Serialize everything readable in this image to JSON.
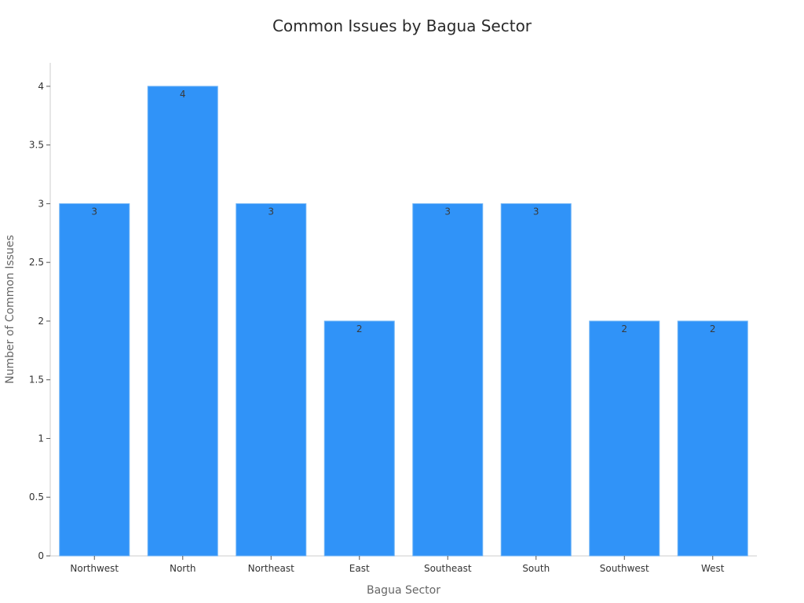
{
  "chart_data": {
    "type": "bar",
    "title": "Common Issues by Bagua Sector",
    "xlabel": "Bagua Sector",
    "ylabel": "Number of Common Issues",
    "categories": [
      "Northwest",
      "North",
      "Northeast",
      "East",
      "Southeast",
      "South",
      "Southwest",
      "West"
    ],
    "values": [
      3,
      4,
      3,
      2,
      3,
      3,
      2,
      2
    ],
    "ylim": [
      0,
      4.2
    ],
    "yticks": [
      "0",
      "0.5",
      "1",
      "1.5",
      "2",
      "2.5",
      "3",
      "3.5",
      "4"
    ],
    "data_labels": [
      "3",
      "4",
      "3",
      "2",
      "3",
      "3",
      "2",
      "2"
    ],
    "grid": false,
    "legend": "none",
    "bar_color": "#3093f8"
  }
}
